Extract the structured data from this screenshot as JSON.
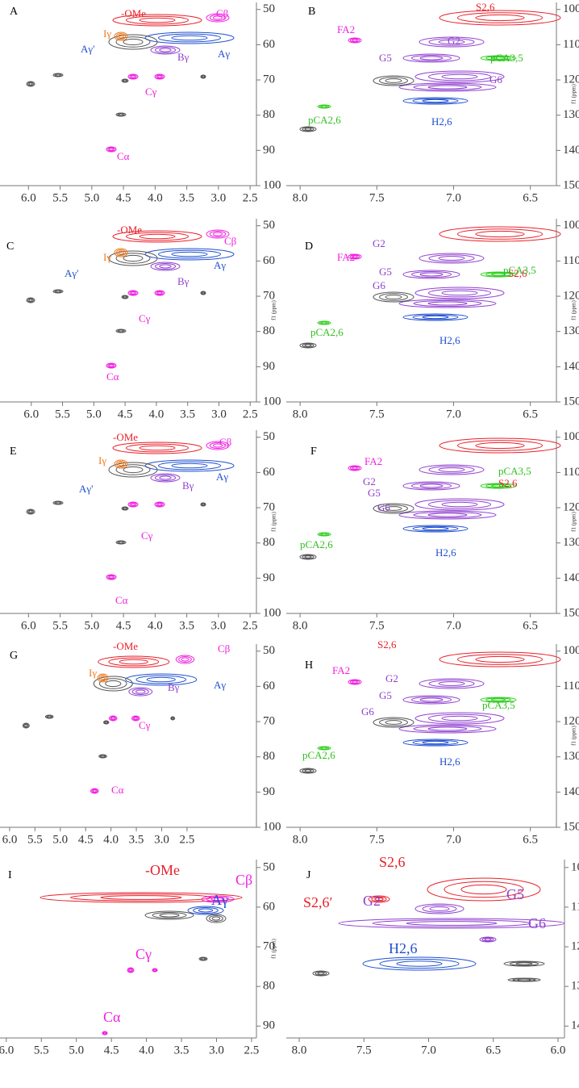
{
  "panels": [
    {
      "letter": "A",
      "xlim": [
        6.45,
        2.4
      ],
      "ylim": [
        48,
        100
      ],
      "xticks": [
        {
          "value": 6,
          "label": "6.0"
        },
        5.5,
        {
          "value": 5,
          "label": "5.0"
        },
        4.5,
        {
          "value": 4,
          "label": "4.0"
        },
        3.5,
        {
          "value": 3,
          "label": "3.0"
        },
        2.5
      ],
      "yticks": [
        50,
        60,
        70,
        80,
        90,
        100
      ],
      "annotations": [
        {
          "text": "-OMe",
          "color": "#e8202a"
        },
        {
          "text": "Cβ",
          "color": "#f020e0"
        },
        {
          "text": "Iγ",
          "color": "#f07a20"
        },
        {
          "text": "Aγ'",
          "color": "#2050d0"
        },
        {
          "text": "Aγ",
          "color": "#2050d0"
        },
        {
          "text": "Bγ",
          "color": "#9040d0"
        },
        {
          "text": "Cγ",
          "color": "#f020e0"
        },
        {
          "text": "Cα",
          "color": "#f020e0"
        }
      ]
    },
    {
      "letter": "B",
      "xlim": [
        8.09,
        6.33
      ],
      "ylim": [
        98,
        150
      ],
      "xticks": [
        {
          "value": 8,
          "label": "8.0"
        },
        7.5,
        {
          "value": 7,
          "label": "7.0"
        },
        6.5
      ],
      "yticks": [
        100,
        110,
        120,
        130,
        140,
        150
      ],
      "ylabel": "f1 (ppm)",
      "annotations": [
        {
          "text": "S2,6",
          "color": "#e8202a"
        },
        {
          "text": "FA2",
          "color": "#f020e0"
        },
        {
          "text": "G2",
          "color": "#9040d0"
        },
        {
          "text": "G5",
          "color": "#9040d0"
        },
        {
          "text": "pCA3,5",
          "color": "#30c020"
        },
        {
          "text": "G6",
          "color": "#9040d0"
        },
        {
          "text": "H2,6",
          "color": "#2050d0"
        },
        {
          "text": "pCA2,6",
          "color": "#30c020"
        }
      ]
    },
    {
      "letter": "C",
      "xlim": [
        6.5,
        2.4
      ],
      "ylim": [
        48,
        100
      ],
      "xticks": [
        {
          "value": 6,
          "label": "6.0"
        },
        5.5,
        {
          "value": 5,
          "label": "5.0"
        },
        4.5,
        {
          "value": 4,
          "label": "4.0"
        },
        3.5,
        {
          "value": 3,
          "label": "3.0"
        },
        2.5
      ],
      "yticks": [
        50,
        60,
        70,
        80,
        90,
        100
      ],
      "ylabel": "f1 (ppm)",
      "annotations": [
        {
          "text": "-OMe",
          "color": "#e8202a"
        },
        {
          "text": "Cβ",
          "color": "#f020e0"
        },
        {
          "text": "Iγ",
          "color": "#f07a20"
        },
        {
          "text": "Aγ'",
          "color": "#2050d0"
        },
        {
          "text": "Aγ",
          "color": "#2050d0"
        },
        {
          "text": "Bγ",
          "color": "#9040d0"
        },
        {
          "text": "Cγ",
          "color": "#f020e0"
        },
        {
          "text": "Cα",
          "color": "#f020e0"
        }
      ]
    },
    {
      "letter": "D",
      "xlim": [
        8.09,
        6.33
      ],
      "ylim": [
        98,
        150
      ],
      "xticks": [
        {
          "value": 8,
          "label": "8.0"
        },
        7.5,
        {
          "value": 7,
          "label": "7.0"
        },
        6.5
      ],
      "yticks": [
        100,
        110,
        120,
        130,
        140,
        150
      ],
      "ylabel": "f1 (ppm)",
      "annotations": [
        {
          "text": "S2,6",
          "color": "#e8202a"
        },
        {
          "text": "G2",
          "color": "#9040d0"
        },
        {
          "text": "FA2",
          "color": "#f020e0"
        },
        {
          "text": "G5",
          "color": "#9040d0"
        },
        {
          "text": "pCA3,5",
          "color": "#30c020"
        },
        {
          "text": "G6",
          "color": "#9040d0"
        },
        {
          "text": "pCA2,6",
          "color": "#30c020"
        },
        {
          "text": "H2,6",
          "color": "#2050d0"
        }
      ]
    },
    {
      "letter": "E",
      "xlim": [
        6.45,
        2.4
      ],
      "ylim": [
        48,
        100
      ],
      "xticks": [
        {
          "value": 6,
          "label": "6.0"
        },
        5.5,
        {
          "value": 5,
          "label": "5.0"
        },
        4.5,
        {
          "value": 4,
          "label": "4.0"
        },
        3.5,
        {
          "value": 3,
          "label": "3.0"
        },
        2.5
      ],
      "yticks": [
        50,
        60,
        70,
        80,
        90,
        100
      ],
      "ylabel": "f1 (ppm)",
      "annotations": [
        {
          "text": "-OMe",
          "color": "#e8202a"
        },
        {
          "text": "Cβ",
          "color": "#f020e0"
        },
        {
          "text": "Iγ",
          "color": "#f07a20"
        },
        {
          "text": "Aγ",
          "color": "#2050d0"
        },
        {
          "text": "Aγ'",
          "color": "#2050d0"
        },
        {
          "text": "Bγ",
          "color": "#9040d0"
        },
        {
          "text": "Cγ",
          "color": "#f020e0"
        },
        {
          "text": "Cα",
          "color": "#f020e0"
        }
      ]
    },
    {
      "letter": "F",
      "xlim": [
        8.09,
        6.33
      ],
      "ylim": [
        98,
        150
      ],
      "xticks": [
        {
          "value": 8,
          "label": "8.0"
        },
        7.5,
        {
          "value": 7,
          "label": "7.0"
        },
        6.5
      ],
      "yticks": [
        100,
        110,
        120,
        130,
        140,
        150
      ],
      "ylabel": "f1 (ppm)",
      "annotations": [
        {
          "text": "FA2",
          "color": "#f020e0"
        },
        {
          "text": "S2,6",
          "color": "#e8202a"
        },
        {
          "text": "G2",
          "color": "#9040d0"
        },
        {
          "text": "pCA3,5",
          "color": "#30c020"
        },
        {
          "text": "G5",
          "color": "#9040d0"
        },
        {
          "text": "G6",
          "color": "#9040d0"
        },
        {
          "text": "pCA2,6",
          "color": "#30c020"
        },
        {
          "text": "H2,6",
          "color": "#2050d0"
        }
      ]
    },
    {
      "letter": "G",
      "xlim": [
        6.19,
        1.13
      ],
      "ylim": [
        48,
        100
      ],
      "xticks": [
        {
          "value": 6,
          "label": "6.0"
        },
        5.5,
        {
          "value": 5,
          "label": "5.0"
        },
        4.5,
        {
          "value": 4,
          "label": "4.0"
        },
        3.5,
        {
          "value": 3,
          "label": "3.0"
        },
        2.5
      ],
      "yticks": [
        50,
        60,
        70,
        80,
        90,
        100
      ],
      "annotations": [
        {
          "text": "-OMe",
          "color": "#e8202a"
        },
        {
          "text": "Cβ",
          "color": "#f020e0"
        },
        {
          "text": "Iγ",
          "color": "#f07a20"
        },
        {
          "text": "Aγ",
          "color": "#2050d0"
        },
        {
          "text": "Bγ",
          "color": "#9040d0"
        },
        {
          "text": "Cγ",
          "color": "#f020e0"
        },
        {
          "text": "Cα",
          "color": "#f020e0"
        }
      ]
    },
    {
      "letter": "H",
      "xlim": [
        8.09,
        6.33
      ],
      "ylim": [
        98,
        150
      ],
      "xticks": [
        {
          "value": 8,
          "label": "8.0"
        },
        7.5,
        {
          "value": 7,
          "label": "7.0"
        },
        6.5
      ],
      "yticks": [
        100,
        110,
        120,
        130,
        140,
        150
      ],
      "ylabel": "f1 (ppm)",
      "annotations": [
        {
          "text": "S2,6",
          "color": "#e8202a"
        },
        {
          "text": "FA2",
          "color": "#f020e0"
        },
        {
          "text": "G2",
          "color": "#9040d0"
        },
        {
          "text": "G5",
          "color": "#9040d0"
        },
        {
          "text": "pCA3,5",
          "color": "#30c020"
        },
        {
          "text": "G6",
          "color": "#9040d0"
        },
        {
          "text": "pCA2,6",
          "color": "#30c020"
        },
        {
          "text": "H2,6",
          "color": "#2050d0"
        }
      ]
    },
    {
      "letter": "I",
      "xlim": [
        6.09,
        2.43
      ],
      "ylim": [
        48,
        93
      ],
      "xticks": [
        {
          "value": 6,
          "label": "6.0"
        },
        5.5,
        {
          "value": 5,
          "label": "5.0"
        },
        4.5,
        {
          "value": 4,
          "label": "4.0"
        },
        3.5,
        {
          "value": 3,
          "label": "3.0"
        },
        2.5
      ],
      "yticks": [
        50,
        60,
        70,
        80,
        90
      ],
      "ylabel": "f1 (ppm)",
      "annotations": [
        {
          "text": "-OMe",
          "color": "#e8202a"
        },
        {
          "text": "Cβ",
          "color": "#f020e0"
        },
        {
          "text": "Aγ",
          "color": "#2050d0"
        },
        {
          "text": "Cγ",
          "color": "#f020e0"
        },
        {
          "text": "Cα",
          "color": "#f020e0"
        }
      ]
    },
    {
      "letter": "J",
      "xlim": [
        8.1,
        5.95
      ],
      "ylim": [
        98,
        143
      ],
      "xticks": [
        {
          "value": 8,
          "label": "8.0"
        },
        7.5,
        {
          "value": 7,
          "label": "7.0"
        },
        6.5,
        {
          "value": 6,
          "label": "6.0"
        }
      ],
      "yticks": [
        100,
        110,
        120,
        130,
        140
      ],
      "ylabel": "f1 (ppm)",
      "annotations": [
        {
          "text": "S2,6",
          "color": "#e8202a"
        },
        {
          "text": "S2,6′",
          "color": "#e8202a"
        },
        {
          "text": "G2",
          "color": "#9040d0"
        },
        {
          "text": "G5",
          "color": "#9040d0"
        },
        {
          "text": "G6",
          "color": "#9040d0"
        },
        {
          "text": "H2,6",
          "color": "#2050d0"
        }
      ]
    }
  ]
}
